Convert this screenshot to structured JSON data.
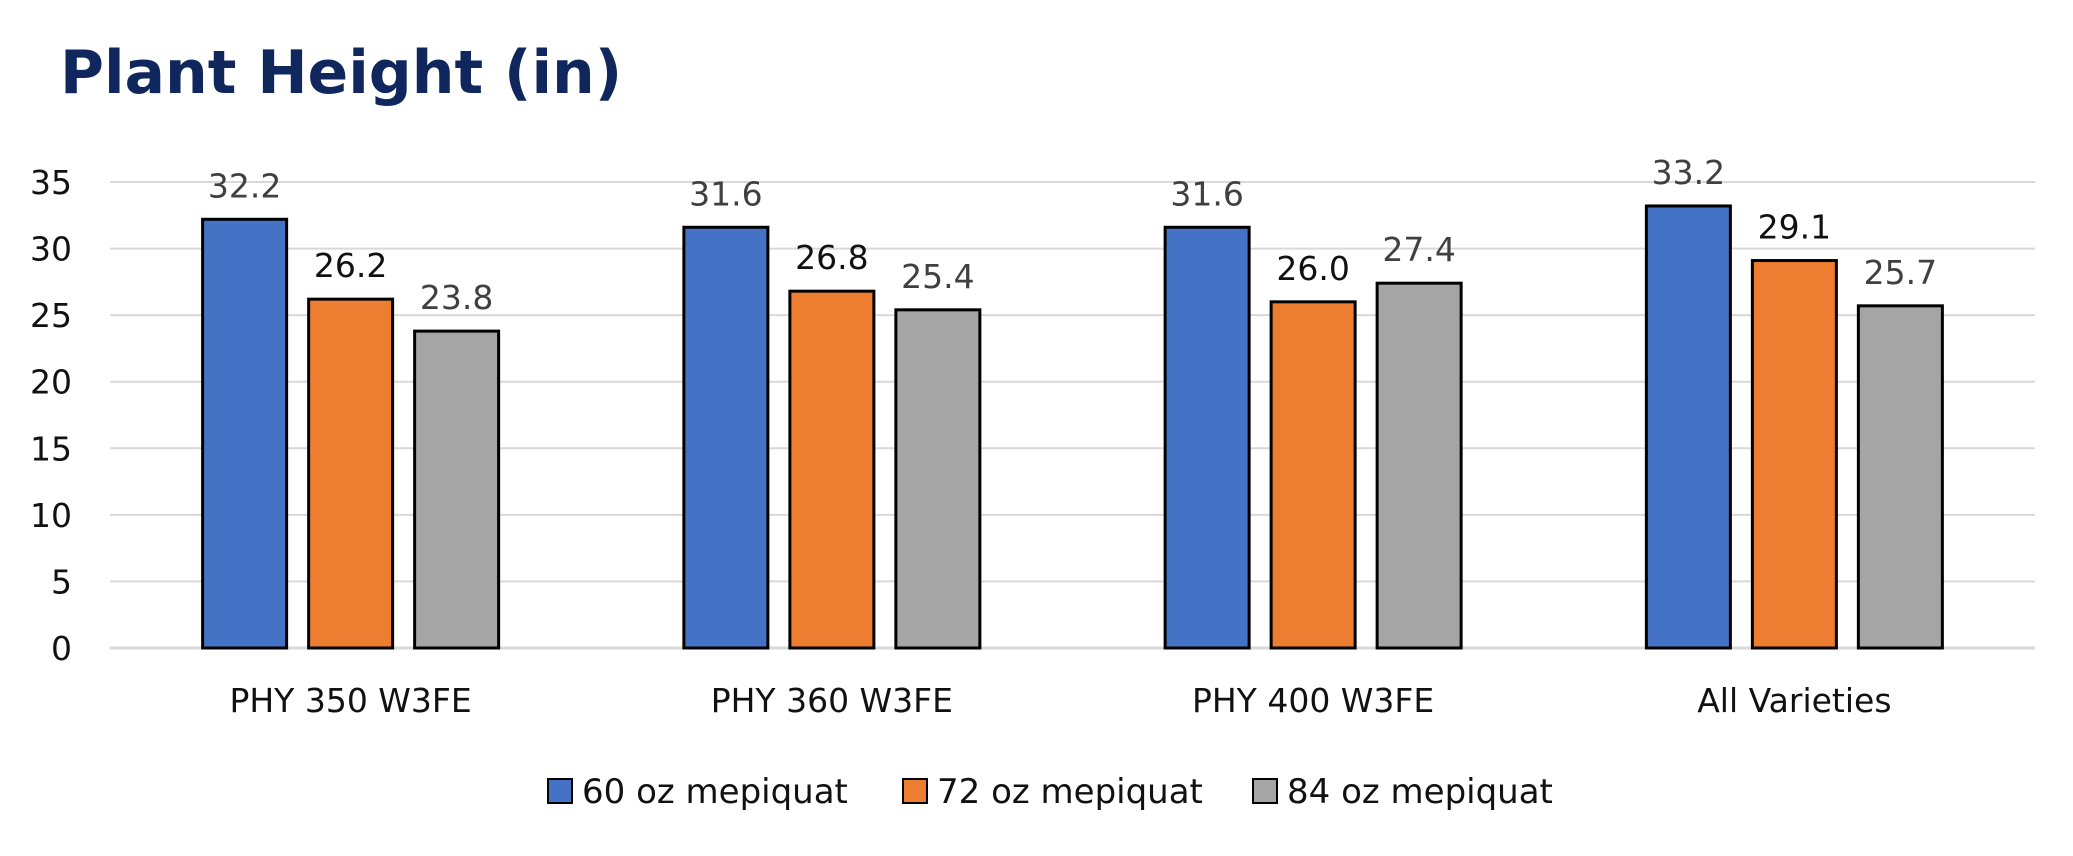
{
  "chart_data": {
    "type": "bar",
    "title": "Plant Height (in)",
    "xlabel": "",
    "ylabel": "",
    "ylim": [
      0,
      35
    ],
    "yticks": [
      0,
      5,
      10,
      15,
      20,
      25,
      30,
      35
    ],
    "grid": true,
    "legend_position": "bottom",
    "categories": [
      "PHY 350 W3FE",
      "PHY 360 W3FE",
      "PHY 400 W3FE",
      "All Varieties"
    ],
    "series": [
      {
        "name": "60 oz mepiquat",
        "color": "#4472c4",
        "values": [
          32.2,
          31.6,
          31.6,
          33.2
        ],
        "labels": [
          "32.2",
          "31.6",
          "31.6",
          "33.2"
        ]
      },
      {
        "name": "72 oz mepiquat",
        "color": "#ed7d31",
        "values": [
          26.2,
          26.8,
          26.0,
          29.1
        ],
        "labels": [
          "26.2",
          "26.8",
          "26.0",
          "29.1"
        ]
      },
      {
        "name": "84 oz mepiquat",
        "color": "#a5a5a5",
        "values": [
          23.8,
          25.4,
          27.4,
          25.7
        ],
        "labels": [
          "23.8",
          "25.4",
          "27.4",
          "25.7"
        ]
      }
    ]
  }
}
